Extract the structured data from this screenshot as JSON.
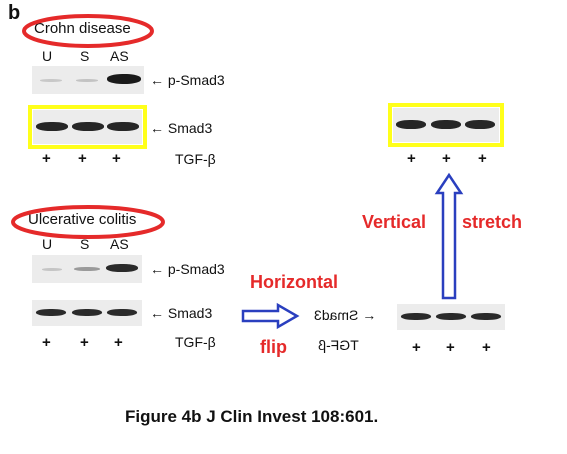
{
  "panel_letter": "b",
  "crohn": {
    "title": "Crohn disease",
    "lanes": [
      "U",
      "S",
      "AS"
    ],
    "psmad_label": "p-Smad3",
    "smad_label": "Smad3",
    "tgf_label": "TGF-β",
    "plus": "+"
  },
  "uc": {
    "title": "Ulcerative colitis",
    "lanes": [
      "U",
      "S",
      "AS"
    ],
    "psmad_label": "p-Smad3",
    "smad_label": "Smad3",
    "tgf_label": "TGF-β",
    "plus": "+"
  },
  "flipped": {
    "smad_label": "Smad3",
    "tgf_label": "TGF-β",
    "plus": "+"
  },
  "stretched": {
    "plus": "+"
  },
  "annotations": {
    "horizontal": "Horizontal",
    "flip": "flip",
    "vertical": "Vertical",
    "stretch": "stretch"
  },
  "caption": "Figure 4b J Clin Invest 108:601.",
  "colors": {
    "highlight_ellipse": "#e52a2a",
    "highlight_box": "#ffff1a",
    "arrow": "#2a3fbf",
    "annotation_text": "#e52a2a"
  }
}
